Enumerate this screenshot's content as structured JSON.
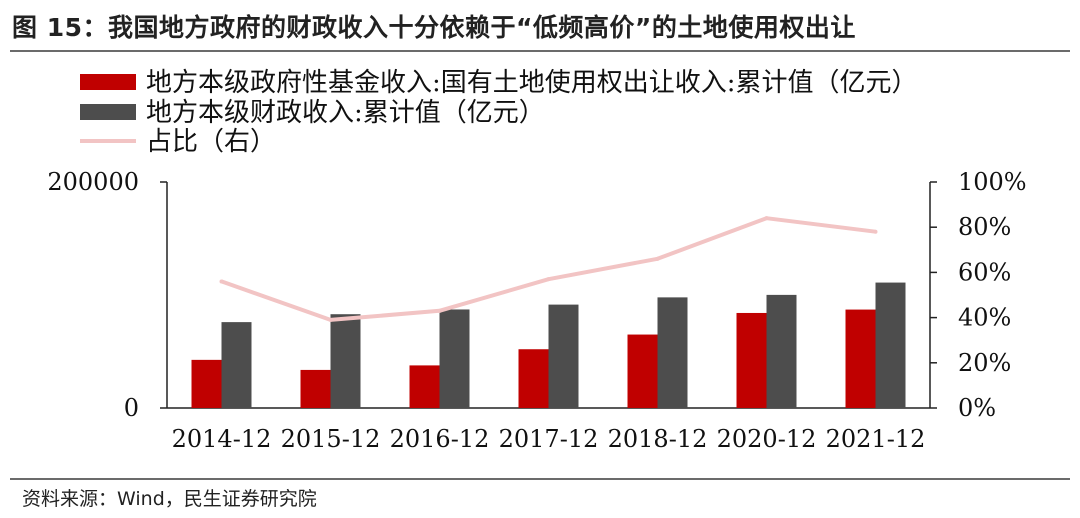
{
  "figure": {
    "title": "图 15：我国地方政府的财政收入十分依赖于“低频高价”的土地使用权出让",
    "source": "资料来源：Wind，民生证券研究院"
  },
  "colors": {
    "land_revenue": "#c00000",
    "fiscal_revenue": "#4d4d4d",
    "ratio": "#f2c4c4"
  },
  "chart_data": {
    "type": "bar",
    "categories": [
      "2014-12",
      "2015-12",
      "2016-12",
      "2017-12",
      "2018-12",
      "2020-12",
      "2021-12"
    ],
    "series": [
      {
        "name": "地方本级政府性基金收入:国有土地使用权出让收入:累计值（亿元）",
        "kind": "bar",
        "axis": "left",
        "values": [
          42600,
          33700,
          37700,
          52000,
          65000,
          84100,
          87100
        ]
      },
      {
        "name": "地方本级财政收入:累计值（亿元）",
        "kind": "bar",
        "axis": "left",
        "values": [
          76000,
          83000,
          87200,
          91500,
          97900,
          100100,
          111000
        ]
      },
      {
        "name": "占比（右）",
        "kind": "line",
        "axis": "right",
        "values": [
          56,
          39,
          43,
          57,
          66,
          84,
          78
        ]
      }
    ],
    "y_left": {
      "min": 0,
      "max": 200000,
      "ticks": [
        0,
        200000
      ]
    },
    "y_right": {
      "min": 0,
      "max": 100,
      "ticks": [
        "0%",
        "20%",
        "40%",
        "60%",
        "80%",
        "100%"
      ]
    },
    "legend": "top-left",
    "grid": false
  }
}
